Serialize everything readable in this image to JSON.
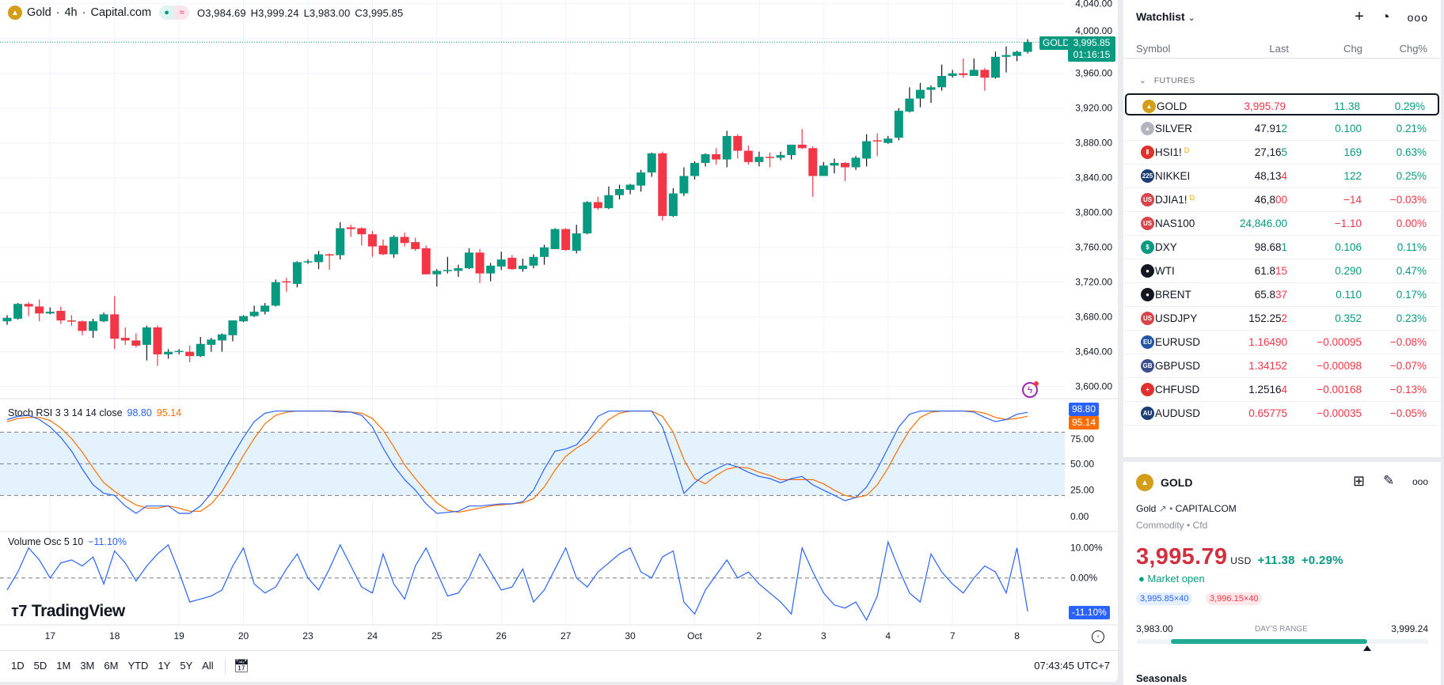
{
  "legend": {
    "symbol_name": "Gold",
    "interval": "4h",
    "exchange": "Capital.com",
    "open": "O3,984.69",
    "high": "H3,999.24",
    "low": "L3,983.00",
    "close": "C3,995.85",
    "sep": "·"
  },
  "colors": {
    "up": "#089981",
    "down": "#f23645",
    "k": "#2962ff",
    "d": "#ff6d00",
    "vol": "#2962ff",
    "band": "#e3f2fd"
  },
  "price_axis": {
    "labels": [
      "4,040.00",
      "4,000.00",
      "3,960.00",
      "3,920.00",
      "3,880.00",
      "3,840.00",
      "3,800.00",
      "3,760.00",
      "3,720.00",
      "3,680.00",
      "3,640.00",
      "3,600.00"
    ],
    "current_tag": {
      "symbol": "GOLD",
      "price": "3,995.85",
      "countdown": "01:16:15",
      "value": 3995.85
    }
  },
  "chart_data": {
    "type": "candlestick",
    "interval": "4h",
    "x_labels": [
      {
        "i": 5,
        "t": "17"
      },
      {
        "i": 11,
        "t": "18"
      },
      {
        "i": 17,
        "t": "19"
      },
      {
        "i": 23,
        "t": "20"
      },
      {
        "i": 29,
        "t": "23"
      },
      {
        "i": 35,
        "t": "24"
      },
      {
        "i": 41,
        "t": "25"
      },
      {
        "i": 47,
        "t": "26"
      },
      {
        "i": 53,
        "t": "27"
      },
      {
        "i": 59,
        "t": "30"
      },
      {
        "i": 65,
        "t": "Oct"
      },
      {
        "i": 71,
        "t": "2"
      },
      {
        "i": 77,
        "t": "3"
      },
      {
        "i": 83,
        "t": "4"
      },
      {
        "i": 89,
        "t": "7"
      },
      {
        "i": 95,
        "t": "8"
      }
    ],
    "ylim": [
      3600,
      4040
    ],
    "ohlc": [
      [
        3675,
        3682,
        3671,
        3679
      ],
      [
        3678,
        3696,
        3677,
        3695
      ],
      [
        3695,
        3697,
        3681,
        3692
      ],
      [
        3692,
        3700,
        3675,
        3684
      ],
      [
        3684,
        3691,
        3683,
        3686
      ],
      [
        3687,
        3692,
        3672,
        3676
      ],
      [
        3676,
        3682,
        3670,
        3675
      ],
      [
        3675,
        3676,
        3659,
        3664
      ],
      [
        3664,
        3678,
        3656,
        3675
      ],
      [
        3675,
        3685,
        3674,
        3683
      ],
      [
        3683,
        3704,
        3643,
        3655
      ],
      [
        3656,
        3668,
        3648,
        3653
      ],
      [
        3653,
        3661,
        3645,
        3647
      ],
      [
        3648,
        3670,
        3630,
        3668
      ],
      [
        3668,
        3670,
        3624,
        3637
      ],
      [
        3637,
        3643,
        3632,
        3640
      ],
      [
        3640,
        3643,
        3637,
        3641
      ],
      [
        3640,
        3647,
        3628,
        3635
      ],
      [
        3635,
        3657,
        3634,
        3649
      ],
      [
        3648,
        3656,
        3640,
        3654
      ],
      [
        3653,
        3661,
        3640,
        3660
      ],
      [
        3659,
        3676,
        3652,
        3676
      ],
      [
        3675,
        3682,
        3674,
        3681
      ],
      [
        3681,
        3693,
        3680,
        3686
      ],
      [
        3686,
        3696,
        3683,
        3693
      ],
      [
        3693,
        3723,
        3692,
        3720
      ],
      [
        3721,
        3725,
        3709,
        3720
      ],
      [
        3718,
        3744,
        3714,
        3743
      ],
      [
        3743,
        3746,
        3741,
        3744
      ],
      [
        3743,
        3756,
        3735,
        3752
      ],
      [
        3752,
        3753,
        3734,
        3751
      ],
      [
        3751,
        3789,
        3746,
        3782
      ],
      [
        3783,
        3786,
        3772,
        3781
      ],
      [
        3782,
        3783,
        3762,
        3775
      ],
      [
        3775,
        3779,
        3749,
        3761
      ],
      [
        3762,
        3769,
        3751,
        3752
      ],
      [
        3752,
        3774,
        3748,
        3772
      ],
      [
        3772,
        3777,
        3761,
        3765
      ],
      [
        3766,
        3771,
        3756,
        3758
      ],
      [
        3759,
        3762,
        3729,
        3729
      ],
      [
        3729,
        3735,
        3715,
        3733
      ],
      [
        3733,
        3749,
        3730,
        3734
      ],
      [
        3733,
        3740,
        3726,
        3736
      ],
      [
        3736,
        3759,
        3735,
        3754
      ],
      [
        3754,
        3758,
        3719,
        3730
      ],
      [
        3730,
        3742,
        3721,
        3739
      ],
      [
        3738,
        3755,
        3734,
        3746
      ],
      [
        3748,
        3751,
        3734,
        3735
      ],
      [
        3735,
        3747,
        3732,
        3739
      ],
      [
        3739,
        3752,
        3736,
        3749
      ],
      [
        3749,
        3763,
        3740,
        3760
      ],
      [
        3758,
        3782,
        3758,
        3781
      ],
      [
        3781,
        3782,
        3756,
        3757
      ],
      [
        3756,
        3786,
        3753,
        3776
      ],
      [
        3776,
        3813,
        3775,
        3812
      ],
      [
        3812,
        3818,
        3803,
        3805
      ],
      [
        3805,
        3830,
        3804,
        3820
      ],
      [
        3820,
        3832,
        3815,
        3827
      ],
      [
        3826,
        3833,
        3821,
        3832
      ],
      [
        3831,
        3849,
        3824,
        3846
      ],
      [
        3846,
        3869,
        3841,
        3868
      ],
      [
        3868,
        3870,
        3791,
        3796
      ],
      [
        3796,
        3828,
        3795,
        3822
      ],
      [
        3822,
        3852,
        3819,
        3842
      ],
      [
        3842,
        3859,
        3838,
        3857
      ],
      [
        3857,
        3868,
        3853,
        3867
      ],
      [
        3867,
        3874,
        3855,
        3861
      ],
      [
        3861,
        3894,
        3852,
        3888
      ],
      [
        3888,
        3890,
        3862,
        3871
      ],
      [
        3871,
        3877,
        3855,
        3858
      ],
      [
        3858,
        3870,
        3853,
        3864
      ],
      [
        3864,
        3869,
        3852,
        3863
      ],
      [
        3863,
        3870,
        3860,
        3866
      ],
      [
        3866,
        3878,
        3861,
        3878
      ],
      [
        3878,
        3896,
        3873,
        3874
      ],
      [
        3874,
        3876,
        3818,
        3842
      ],
      [
        3842,
        3858,
        3842,
        3854
      ],
      [
        3854,
        3862,
        3845,
        3857
      ],
      [
        3857,
        3858,
        3836,
        3852
      ],
      [
        3852,
        3865,
        3849,
        3863
      ],
      [
        3862,
        3890,
        3853,
        3882
      ],
      [
        3883,
        3891,
        3865,
        3882
      ],
      [
        3880,
        3888,
        3879,
        3885
      ],
      [
        3886,
        3920,
        3883,
        3917
      ],
      [
        3916,
        3944,
        3915,
        3931
      ],
      [
        3931,
        3949,
        3921,
        3941
      ],
      [
        3941,
        3946,
        3926,
        3944
      ],
      [
        3944,
        3970,
        3940,
        3957
      ],
      [
        3957,
        3964,
        3955,
        3960
      ],
      [
        3960,
        3977,
        3955,
        3958
      ],
      [
        3957,
        3977,
        3957,
        3964
      ],
      [
        3964,
        3966,
        3940,
        3955
      ],
      [
        3955,
        3985,
        3954,
        3979
      ],
      [
        3979,
        3991,
        3961,
        3981
      ],
      [
        3980,
        3986,
        3974,
        3984.69
      ],
      [
        3984.69,
        3999.24,
        3983.0,
        3995.85
      ]
    ]
  },
  "stoch": {
    "title": "Stoch RSI 3 3 14 14 close",
    "k_label": "98.80",
    "d_label": "95.14",
    "axis": [
      "75.00",
      "50.00",
      "25.00",
      "0.00"
    ],
    "upper": 80,
    "lower": 20,
    "k": [
      92,
      95,
      96,
      92,
      85,
      75,
      62,
      45,
      30,
      22,
      20,
      10,
      3,
      10,
      10,
      10,
      3,
      3,
      10,
      22,
      40,
      58,
      75,
      90,
      98,
      100,
      100,
      100,
      100,
      100,
      100,
      99,
      99,
      96,
      85,
      65,
      48,
      35,
      25,
      12,
      3,
      4,
      5,
      10,
      10,
      11,
      12,
      12,
      14,
      25,
      45,
      62,
      64,
      68,
      80,
      95,
      100,
      100,
      100,
      100,
      100,
      85,
      55,
      22,
      32,
      40,
      45,
      50,
      47,
      42,
      38,
      36,
      32,
      36,
      38,
      30,
      25,
      20,
      15,
      18,
      28,
      45,
      65,
      85,
      97,
      100,
      100,
      100,
      100,
      100,
      99,
      94,
      90,
      92,
      97,
      98.8
    ],
    "d": [
      90,
      93,
      94,
      94,
      91,
      84,
      74,
      61,
      46,
      32,
      24,
      17,
      11,
      8,
      8,
      10,
      8,
      5,
      5,
      12,
      24,
      40,
      58,
      74,
      88,
      96,
      99,
      100,
      100,
      100,
      100,
      100,
      99,
      98,
      93,
      82,
      66,
      49,
      36,
      24,
      13,
      6,
      4,
      6,
      8,
      10,
      11,
      12,
      13,
      17,
      28,
      44,
      57,
      65,
      71,
      81,
      92,
      98,
      100,
      100,
      100,
      95,
      80,
      54,
      36,
      31,
      39,
      45,
      47,
      46,
      42,
      39,
      35,
      35,
      35,
      35,
      31,
      25,
      20,
      18,
      20,
      30,
      46,
      65,
      82,
      94,
      99,
      100,
      100,
      100,
      100,
      98,
      94,
      92,
      93,
      95.14
    ]
  },
  "volosc": {
    "title": "Volume Osc 5 10",
    "value_label": "−11.10%",
    "tag": "-11.10%",
    "axis": [
      "10.00%",
      "0.00%"
    ],
    "values": [
      -4,
      2,
      10,
      6,
      0,
      5,
      6,
      4,
      7,
      -2,
      9,
      5,
      -1,
      4,
      8,
      11,
      2,
      -8,
      -7,
      -6,
      -4,
      4,
      10,
      -2,
      -5,
      -3,
      3,
      8,
      0,
      -4,
      3,
      11,
      4,
      -3,
      -5,
      8,
      -2,
      -7,
      4,
      10,
      2,
      -6,
      -5,
      0,
      8,
      2,
      -4,
      -3,
      3,
      -8,
      -4,
      3,
      10,
      0,
      -3,
      2,
      5,
      8,
      10,
      2,
      0,
      7,
      9,
      -8,
      -12,
      -4,
      1,
      6,
      0,
      2,
      -2,
      -5,
      -8,
      -12,
      10,
      2,
      -5,
      -9,
      -10,
      -8,
      -14,
      -6,
      12,
      3,
      -5,
      -8,
      8,
      2,
      -2,
      -5,
      0,
      4,
      2,
      -5,
      10,
      -11.1
    ]
  },
  "branding": "TradingView",
  "toolbar": {
    "ranges": [
      "1D",
      "5D",
      "1M",
      "3M",
      "6M",
      "YTD",
      "1Y",
      "5Y",
      "All"
    ],
    "clock": "07:43:45 UTC+7"
  },
  "watchlist": {
    "title": "Watchlist",
    "headers": {
      "symbol": "Symbol",
      "last": "Last",
      "chg": "Chg",
      "chgp": "Chg%"
    },
    "section": "FUTURES",
    "rows": [
      {
        "sym": "GOLD",
        "main": "3,995.79",
        "tail": "",
        "chg": "11.38",
        "chgp": "0.29%",
        "lc": "dn",
        "cc": "up",
        "icon": "#d49e1a",
        "glyph": "▲",
        "sel": true
      },
      {
        "sym": "SILVER",
        "main": "47.91",
        "tail": "2",
        "chg": "0.100",
        "chgp": "0.21%",
        "lc": "",
        "tc": "up",
        "cc": "up",
        "icon": "#b2b5be",
        "glyph": "▲"
      },
      {
        "sym": "HSI1!",
        "flag": "D",
        "main": "27,16",
        "tail": "5",
        "chg": "169",
        "chgp": "0.63%",
        "lc": "",
        "tc": "up",
        "cc": "up",
        "icon": "#e0312f",
        "glyph": "Ⅱ"
      },
      {
        "sym": "NIKKEI",
        "main": "48,13",
        "tail": "4",
        "chg": "122",
        "chgp": "0.25%",
        "lc": "",
        "tc": "dn",
        "cc": "up",
        "icon": "#1e3f73",
        "glyph": "225"
      },
      {
        "sym": "DJIA1!",
        "flag": "D",
        "main": "46,8",
        "tail": "00",
        "chg": "−14",
        "chgp": "−0.03%",
        "lc": "",
        "tc": "dn",
        "cc": "dn",
        "icon": "#d9434a",
        "glyph": "US"
      },
      {
        "sym": "NAS100",
        "main": "24,846.00",
        "tail": "",
        "chg": "−1.10",
        "chgp": "0.00%",
        "lc": "up",
        "cc": "dn",
        "icon": "#d9434a",
        "glyph": "US"
      },
      {
        "sym": "DXY",
        "main": "98.68",
        "tail": "1",
        "chg": "0.106",
        "chgp": "0.11%",
        "lc": "",
        "tc": "up",
        "cc": "up",
        "icon": "#089981",
        "glyph": "$"
      },
      {
        "sym": "WTI",
        "main": "61.8",
        "tail": "15",
        "chg": "0.290",
        "chgp": "0.47%",
        "lc": "",
        "tc": "dn",
        "cc": "up",
        "icon": "#131722",
        "glyph": "●"
      },
      {
        "sym": "BRENT",
        "main": "65.8",
        "tail": "37",
        "chg": "0.110",
        "chgp": "0.17%",
        "lc": "",
        "tc": "dn",
        "cc": "up",
        "icon": "#131722",
        "glyph": "●"
      },
      {
        "sym": "USDJPY",
        "main": "152.25",
        "tail": "2",
        "chg": "0.352",
        "chgp": "0.23%",
        "lc": "",
        "tc": "dn",
        "cc": "up",
        "icon": "#d9434a",
        "glyph": "US"
      },
      {
        "sym": "EURUSD",
        "main": "1.1649",
        "tail": "0",
        "chg": "−0.00095",
        "chgp": "−0.08%",
        "lc": "dn",
        "tc": "dn",
        "cc": "dn",
        "icon": "#2456a4",
        "glyph": "EU"
      },
      {
        "sym": "GBPUSD",
        "main": "1.3415",
        "tail": "2",
        "chg": "−0.00098",
        "chgp": "−0.07%",
        "lc": "dn",
        "tc": "dn",
        "cc": "dn",
        "icon": "#3a4f8c",
        "glyph": "GB"
      },
      {
        "sym": "CHFUSD",
        "main": "1.2516",
        "tail": "4",
        "chg": "−0.00168",
        "chgp": "−0.13%",
        "lc": "",
        "tc": "dn",
        "cc": "dn",
        "icon": "#e0312f",
        "glyph": "+"
      },
      {
        "sym": "AUDUSD",
        "main": "0.6577",
        "tail": "5",
        "chg": "−0.00035",
        "chgp": "−0.05%",
        "lc": "dn",
        "tc": "dn",
        "cc": "dn",
        "icon": "#1e3f73",
        "glyph": "AU"
      }
    ]
  },
  "details": {
    "symbol": "GOLD",
    "name": "Gold",
    "exchange": "CAPITALCOM",
    "type": "Commodity",
    "sub": "Cfd",
    "price": "3,995.79",
    "currency": "USD",
    "chg": "+11.38",
    "chgp": "+0.29%",
    "status": "Market open",
    "bid": "3,995.85×40",
    "ask": "3,996.15×40",
    "low": "3,983.00",
    "range_label": "DAY'S RANGE",
    "high": "3,999.24",
    "range_position": 0.79,
    "range_fill_start": 0.12,
    "seasonals": "Seasonals"
  }
}
